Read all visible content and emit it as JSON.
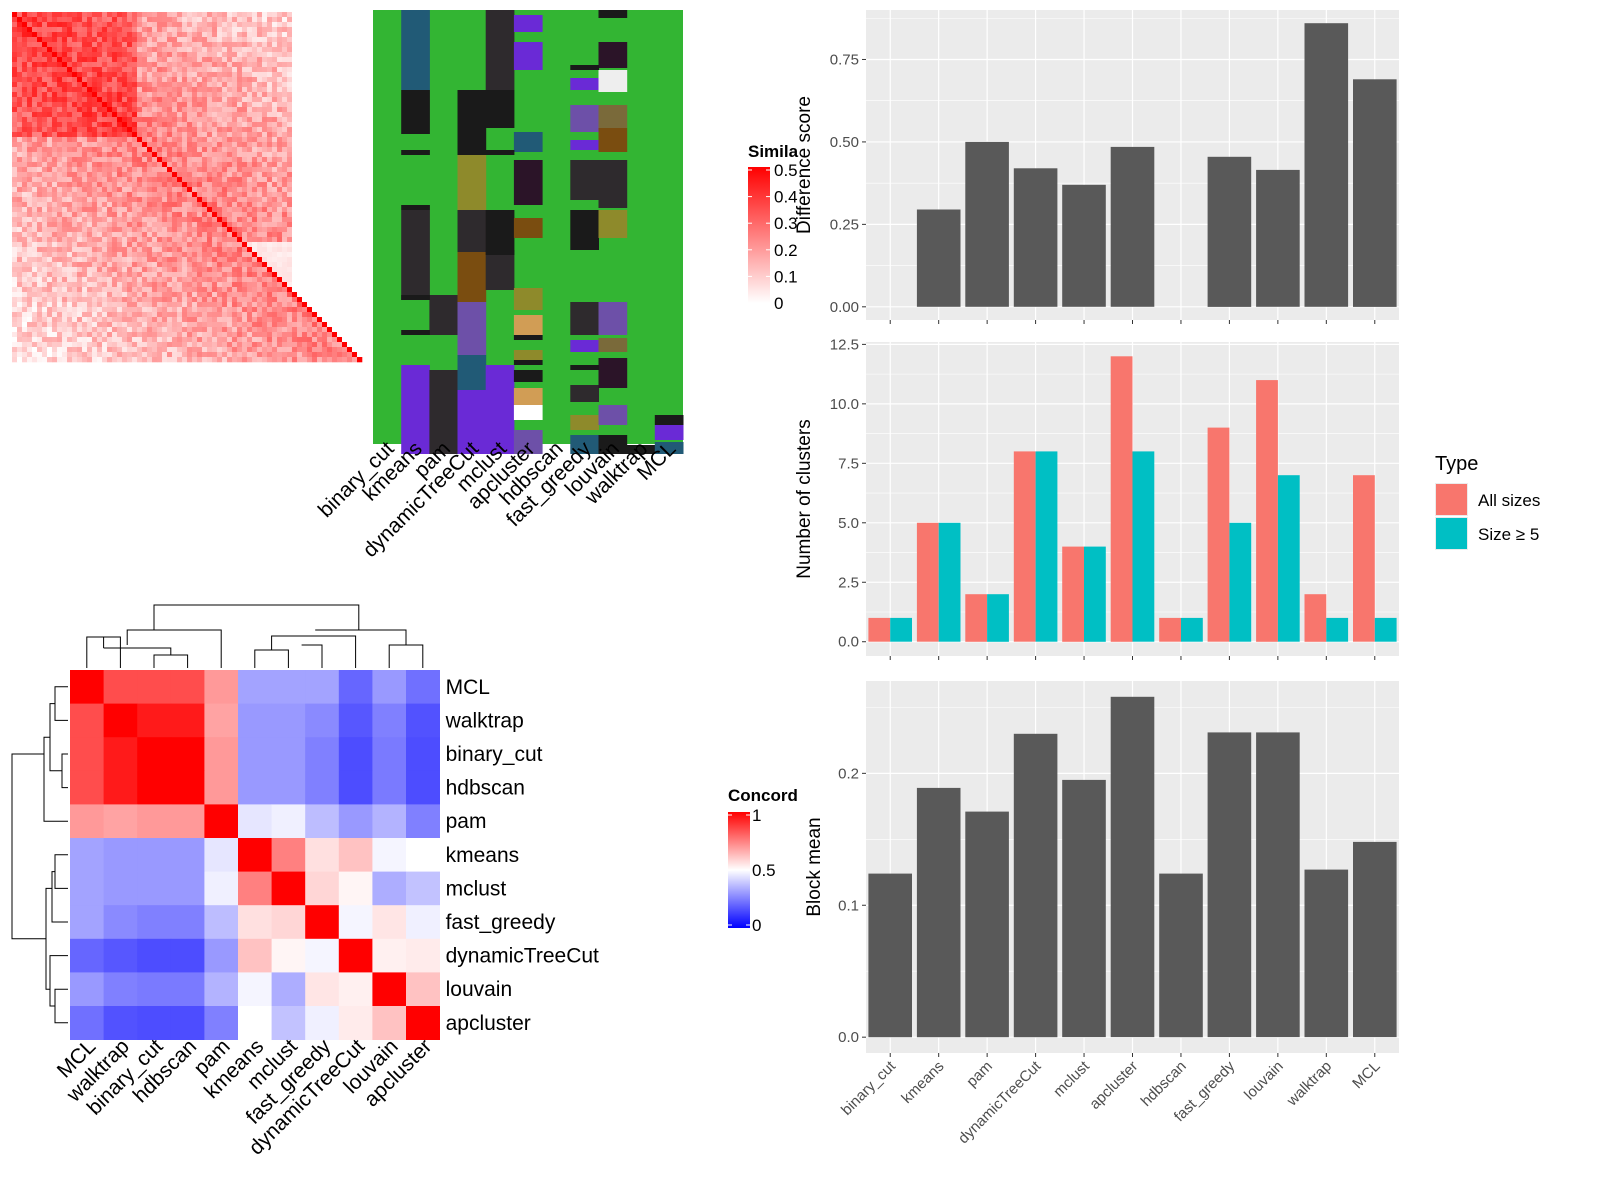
{
  "colors": {
    "panel_bg": "#ebebeb",
    "grid": "#ffffff",
    "bar_gray": "#595959",
    "all_sizes": "#f8766d",
    "size_ge5": "#00bfc4",
    "heat_red": "#ff0000",
    "heat_blue": "#0000ff",
    "cluster_green": "#33b533"
  },
  "similarity_legend": {
    "title": "Simila",
    "ticks": [
      "0.5",
      "0.4",
      "0.3",
      "0.2",
      "0.1",
      "0"
    ]
  },
  "concordance_legend": {
    "title": "Concord",
    "ticks": [
      "1",
      "0.5",
      "0"
    ]
  },
  "cluster_columns": [
    "binary_cut",
    "kmeans",
    "pam",
    "dynamicTreeCut",
    "mclust",
    "apcluster",
    "hdbscan",
    "fast_greedy",
    "louvain",
    "walktrap",
    "MCL"
  ],
  "concordance_order": [
    "MCL",
    "walktrap",
    "binary_cut",
    "hdbscan",
    "pam",
    "kmeans",
    "mclust",
    "fast_greedy",
    "dynamicTreeCut",
    "louvain",
    "apcluster"
  ],
  "chart_data": [
    {
      "type": "heatmap",
      "name": "similarity matrix (red)",
      "value_range": [
        0,
        0.5
      ],
      "n": 70
    },
    {
      "type": "heatmap",
      "name": "concordance",
      "rows": [
        "MCL",
        "walktrap",
        "binary_cut",
        "hdbscan",
        "pam",
        "kmeans",
        "mclust",
        "fast_greedy",
        "dynamicTreeCut",
        "louvain",
        "apcluster"
      ],
      "columns": [
        "MCL",
        "walktrap",
        "binary_cut",
        "hdbscan",
        "pam",
        "kmeans",
        "mclust",
        "fast_greedy",
        "dynamicTreeCut",
        "louvain",
        "apcluster"
      ],
      "values": [
        [
          1.0,
          0.85,
          0.85,
          0.85,
          0.7,
          0.32,
          0.32,
          0.32,
          0.2,
          0.3,
          0.22
        ],
        [
          0.85,
          1.0,
          0.95,
          0.95,
          0.68,
          0.3,
          0.3,
          0.27,
          0.17,
          0.25,
          0.16
        ],
        [
          0.85,
          0.95,
          1.0,
          1.0,
          0.7,
          0.3,
          0.3,
          0.25,
          0.15,
          0.24,
          0.15
        ],
        [
          0.85,
          0.95,
          1.0,
          1.0,
          0.7,
          0.3,
          0.3,
          0.25,
          0.15,
          0.24,
          0.15
        ],
        [
          0.7,
          0.68,
          0.7,
          0.7,
          1.0,
          0.45,
          0.47,
          0.37,
          0.3,
          0.35,
          0.25
        ],
        [
          0.32,
          0.3,
          0.3,
          0.3,
          0.45,
          1.0,
          0.75,
          0.56,
          0.62,
          0.48,
          0.5
        ],
        [
          0.32,
          0.3,
          0.3,
          0.3,
          0.47,
          0.75,
          1.0,
          0.58,
          0.52,
          0.34,
          0.38
        ],
        [
          0.32,
          0.27,
          0.25,
          0.25,
          0.37,
          0.56,
          0.58,
          1.0,
          0.48,
          0.55,
          0.47
        ],
        [
          0.2,
          0.17,
          0.15,
          0.15,
          0.3,
          0.62,
          0.52,
          0.48,
          1.0,
          0.53,
          0.54
        ],
        [
          0.3,
          0.25,
          0.24,
          0.24,
          0.35,
          0.48,
          0.34,
          0.55,
          0.53,
          1.0,
          0.62
        ],
        [
          0.22,
          0.16,
          0.15,
          0.15,
          0.25,
          0.5,
          0.38,
          0.47,
          0.54,
          0.62,
          1.0
        ]
      ],
      "value_range": [
        0,
        1
      ]
    },
    {
      "type": "bar",
      "categories": [
        "binary_cut",
        "kmeans",
        "pam",
        "dynamicTreeCut",
        "mclust",
        "apcluster",
        "hdbscan",
        "fast_greedy",
        "louvain",
        "walktrap",
        "MCL"
      ],
      "values": [
        0.0,
        0.295,
        0.5,
        0.42,
        0.37,
        0.485,
        0.0,
        0.455,
        0.415,
        0.86,
        0.69
      ],
      "ylabel": "Difference score",
      "ylim": [
        -0.04,
        0.9
      ],
      "yticks": [
        "0.00",
        "0.25",
        "0.50",
        "0.75"
      ],
      "ytick_values": [
        0,
        0.25,
        0.5,
        0.75
      ]
    },
    {
      "type": "bar",
      "categories": [
        "binary_cut",
        "kmeans",
        "pam",
        "dynamicTreeCut",
        "mclust",
        "apcluster",
        "hdbscan",
        "fast_greedy",
        "louvain",
        "walktrap",
        "MCL"
      ],
      "series": [
        {
          "name": "All sizes",
          "values": [
            1,
            5,
            2,
            8,
            4,
            12,
            1,
            9,
            11,
            2,
            7
          ]
        },
        {
          "name": "Size ≥ 5",
          "values": [
            1,
            5,
            2,
            8,
            4,
            8,
            1,
            5,
            7,
            1,
            1
          ]
        }
      ],
      "ylabel": "Number of clusters",
      "legend_title": "Type",
      "legend_position": "right",
      "ylim": [
        -0.6,
        12.6
      ],
      "yticks": [
        "0.0",
        "2.5",
        "5.0",
        "7.5",
        "10.0",
        "12.5"
      ],
      "ytick_values": [
        0,
        2.5,
        5,
        7.5,
        10,
        12.5
      ]
    },
    {
      "type": "bar",
      "categories": [
        "binary_cut",
        "kmeans",
        "pam",
        "dynamicTreeCut",
        "mclust",
        "apcluster",
        "hdbscan",
        "fast_greedy",
        "louvain",
        "walktrap",
        "MCL"
      ],
      "values": [
        0.124,
        0.189,
        0.171,
        0.23,
        0.195,
        0.258,
        0.124,
        0.231,
        0.231,
        0.127,
        0.148
      ],
      "ylabel": "Block mean",
      "ylim": [
        -0.012,
        0.27
      ],
      "yticks": [
        "0.0",
        "0.1",
        "0.2"
      ],
      "ytick_values": [
        0,
        0.1,
        0.2
      ]
    }
  ]
}
